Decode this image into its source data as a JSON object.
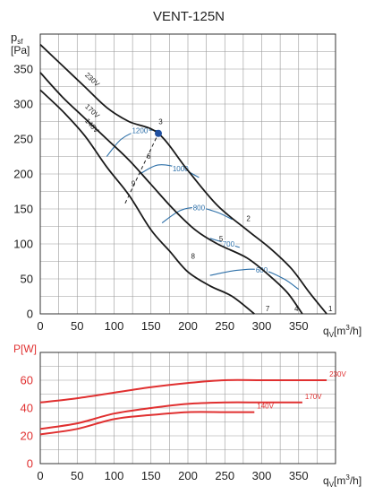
{
  "title": "VENT-125N",
  "chart_data": [
    {
      "type": "line",
      "name": "pressure",
      "ylabel_main": "p",
      "ylabel_sub": "sf",
      "yunit": "[Pa]",
      "xlabel_main": "q",
      "xlabel_sub": "V",
      "xunit": "[m",
      "xunit_sup": "3",
      "xunit_end": "/h]",
      "xlim": [
        0,
        400
      ],
      "ylim": [
        0,
        400
      ],
      "xticks": [
        "0",
        "50",
        "100",
        "150",
        "200",
        "250",
        "300",
        "350"
      ],
      "yticks": [
        "0",
        "50",
        "100",
        "150",
        "200",
        "250",
        "300",
        "350"
      ],
      "xtick_values": [
        0,
        50,
        100,
        150,
        200,
        250,
        300,
        350
      ],
      "ytick_values": [
        0,
        50,
        100,
        150,
        200,
        250,
        300,
        350
      ],
      "grid": true,
      "series": [
        {
          "name": "230V",
          "points": [
            [
              0,
              385
            ],
            [
              30,
              355
            ],
            [
              60,
              325
            ],
            [
              90,
              295
            ],
            [
              120,
              275
            ],
            [
              160,
              258
            ],
            [
              200,
              205
            ],
            [
              240,
              155
            ],
            [
              280,
              120
            ],
            [
              310,
              95
            ],
            [
              340,
              65
            ],
            [
              365,
              30
            ],
            [
              388,
              0
            ]
          ]
        },
        {
          "name": "170V",
          "points": [
            [
              0,
              345
            ],
            [
              30,
              310
            ],
            [
              60,
              280
            ],
            [
              90,
              250
            ],
            [
              120,
              220
            ],
            [
              150,
              185
            ],
            [
              180,
              150
            ],
            [
              210,
              120
            ],
            [
              240,
              100
            ],
            [
              280,
              80
            ],
            [
              310,
              55
            ],
            [
              335,
              30
            ],
            [
              355,
              0
            ]
          ]
        },
        {
          "name": "140V",
          "points": [
            [
              0,
              320
            ],
            [
              30,
              290
            ],
            [
              60,
              255
            ],
            [
              90,
              210
            ],
            [
              120,
              170
            ],
            [
              150,
              120
            ],
            [
              175,
              90
            ],
            [
              200,
              60
            ],
            [
              230,
              40
            ],
            [
              260,
              25
            ],
            [
              290,
              0
            ]
          ]
        }
      ],
      "rpm_curves": [
        {
          "label": "1200",
          "points": [
            [
              90,
              225
            ],
            [
              110,
              250
            ],
            [
              135,
              262
            ],
            [
              160,
              262
            ]
          ]
        },
        {
          "label": "1000",
          "points": [
            [
              135,
              200
            ],
            [
              160,
              213
            ],
            [
              190,
              208
            ],
            [
              215,
              195
            ]
          ]
        },
        {
          "label": "800",
          "points": [
            [
              165,
              130
            ],
            [
              190,
              148
            ],
            [
              215,
              152
            ],
            [
              240,
              145
            ],
            [
              260,
              135
            ]
          ]
        },
        {
          "label": "700",
          "points": [
            [
              230,
              108
            ],
            [
              255,
              100
            ],
            [
              270,
              95
            ]
          ]
        },
        {
          "label": "600",
          "points": [
            [
              230,
              55
            ],
            [
              265,
              62
            ],
            [
              300,
              63
            ],
            [
              330,
              50
            ],
            [
              350,
              35
            ]
          ]
        }
      ],
      "point_labels": [
        {
          "label": "1",
          "x": 393,
          "y": 4
        },
        {
          "label": "2",
          "x": 282,
          "y": 133
        },
        {
          "label": "3",
          "x": 163,
          "y": 271
        },
        {
          "label": "4",
          "x": 347,
          "y": 4
        },
        {
          "label": "5",
          "x": 245,
          "y": 104
        },
        {
          "label": "6",
          "x": 147,
          "y": 222
        },
        {
          "label": "7",
          "x": 308,
          "y": 4
        },
        {
          "label": "8",
          "x": 207,
          "y": 79
        },
        {
          "label": "9",
          "x": 126,
          "y": 183
        }
      ],
      "marker": {
        "x": 160,
        "y": 258
      },
      "dashed_line": [
        [
          115,
          158
        ],
        [
          160,
          258
        ]
      ]
    },
    {
      "type": "line",
      "name": "power",
      "ylabel": "P[W]",
      "xlabel_main": "q",
      "xlabel_sub": "V",
      "xunit": "[m",
      "xunit_sup": "3",
      "xunit_end": "/h]",
      "xlim": [
        0,
        400
      ],
      "ylim": [
        0,
        80
      ],
      "xticks": [
        "0",
        "50",
        "100",
        "150",
        "200",
        "250",
        "300",
        "350"
      ],
      "yticks": [
        "0",
        "20",
        "40",
        "60"
      ],
      "xtick_values": [
        0,
        50,
        100,
        150,
        200,
        250,
        300,
        350
      ],
      "ytick_values": [
        0,
        20,
        40,
        60
      ],
      "grid": true,
      "series": [
        {
          "name": "230V",
          "color": "#e03030",
          "points": [
            [
              0,
              44
            ],
            [
              50,
              47
            ],
            [
              100,
              51
            ],
            [
              150,
              55
            ],
            [
              200,
              58
            ],
            [
              250,
              60
            ],
            [
              300,
              60
            ],
            [
              350,
              60
            ],
            [
              388,
              60
            ]
          ]
        },
        {
          "name": "170V",
          "color": "#e03030",
          "points": [
            [
              0,
              25
            ],
            [
              50,
              29
            ],
            [
              100,
              36
            ],
            [
              150,
              40
            ],
            [
              200,
              43
            ],
            [
              250,
              44
            ],
            [
              300,
              44
            ],
            [
              355,
              44
            ]
          ]
        },
        {
          "name": "140V",
          "color": "#e03030",
          "points": [
            [
              0,
              21
            ],
            [
              50,
              25
            ],
            [
              100,
              32
            ],
            [
              150,
              35
            ],
            [
              200,
              37
            ],
            [
              250,
              37
            ],
            [
              290,
              37
            ]
          ]
        }
      ]
    }
  ],
  "colors": {
    "pressure_line": "#1a1a1a",
    "rpm_line": "#2c6fa8",
    "power_line": "#e03030",
    "grid": "#999999",
    "marker": "#1f4fa0"
  }
}
